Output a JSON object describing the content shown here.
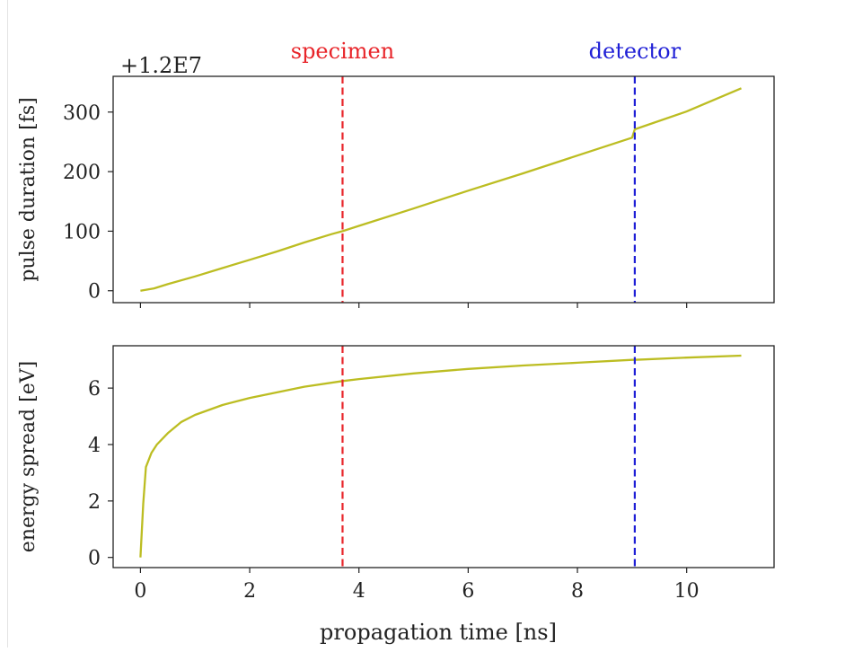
{
  "chart_data": [
    {
      "type": "line",
      "panel": "top",
      "ylabel": "pulse duration [fs]",
      "offset_text": "+1.2E7",
      "xlim": [
        -0.5,
        11.6
      ],
      "ylim": [
        -20,
        360
      ],
      "xticks": [
        0,
        2,
        4,
        6,
        8,
        10
      ],
      "yticks": [
        0,
        100,
        200,
        300
      ],
      "grid": false,
      "series": [
        {
          "color": "#bcbd22",
          "x": [
            0,
            0.25,
            0.5,
            1,
            1.5,
            2,
            2.5,
            3,
            3.5,
            3.7,
            4,
            5,
            6,
            7,
            8,
            9,
            9.05,
            10,
            11
          ],
          "y": [
            0,
            4,
            11,
            24,
            38,
            52,
            66,
            81,
            95,
            100,
            109,
            138,
            168,
            197,
            227,
            257,
            271,
            301,
            340
          ]
        }
      ],
      "vlines": [
        {
          "x": 3.7,
          "color": "#e8252a",
          "label": "specimen"
        },
        {
          "x": 9.05,
          "color": "#1f1fd6",
          "label": "detector"
        }
      ]
    },
    {
      "type": "line",
      "panel": "bottom",
      "xlabel": "propagation time [ns]",
      "ylabel": "energy spread [eV]",
      "xlim": [
        -0.5,
        11.6
      ],
      "ylim": [
        -0.36,
        7.5
      ],
      "xticks": [
        0,
        2,
        4,
        6,
        8,
        10
      ],
      "yticks": [
        0,
        2,
        4,
        6
      ],
      "grid": false,
      "series": [
        {
          "color": "#bcbd22",
          "x": [
            0,
            0.05,
            0.1,
            0.2,
            0.3,
            0.5,
            0.75,
            1,
            1.5,
            2,
            2.5,
            3,
            3.7,
            4,
            5,
            6,
            7,
            8,
            9,
            9.05,
            10,
            11
          ],
          "y": [
            0,
            1.9,
            3.2,
            3.7,
            4.0,
            4.4,
            4.8,
            5.05,
            5.4,
            5.65,
            5.85,
            6.05,
            6.25,
            6.32,
            6.52,
            6.68,
            6.8,
            6.9,
            7.0,
            7.0,
            7.08,
            7.15
          ]
        }
      ],
      "vlines": [
        {
          "x": 3.7,
          "color": "#e8252a"
        },
        {
          "x": 9.05,
          "color": "#1f1fd6"
        }
      ]
    }
  ]
}
